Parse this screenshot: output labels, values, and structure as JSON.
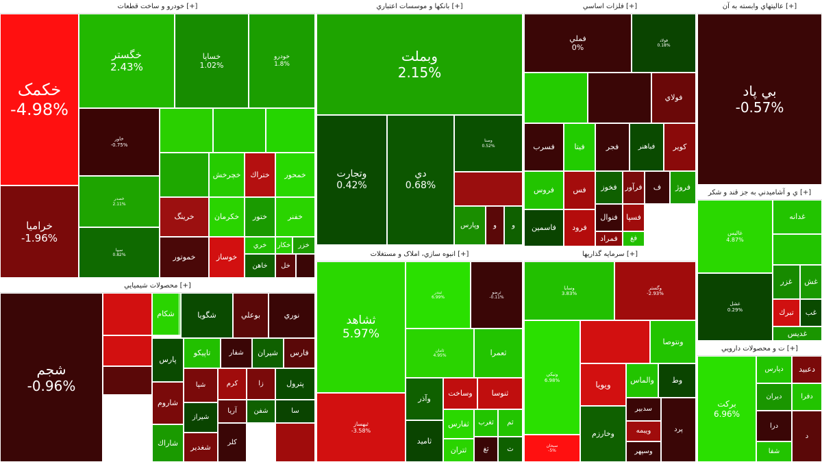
{
  "colors": {
    "strong_red": "#ff0000",
    "red": "#c40000",
    "dark_red": "#7a0000",
    "very_dark_red": "#3a0000",
    "bright_green": "#22ee00",
    "green": "#1aa800",
    "mid_green": "#148600",
    "dark_green": "#0a4d00"
  },
  "sections": [
    {
      "id": "auto",
      "title": "خودرو و ساخت قطعات [+]",
      "tiles": [
        {
          "s": "خکمک",
          "v": "-4.98%",
          "c": "#ff1010",
          "fs": 24
        },
        {
          "s": "خراميا",
          "v": "-1.96%",
          "c": "#7a0a0a",
          "fs": 15
        },
        {
          "s": "خگستر",
          "v": "2.43%",
          "c": "#22b800",
          "fs": 15
        },
        {
          "s": "خساپا",
          "v": "1.02%",
          "c": "#178c00",
          "fs": 11
        },
        {
          "s": "خودرو",
          "v": "1.8%",
          "c": "#1b9e00",
          "fs": 9
        },
        {
          "s": "خاور",
          "v": "-0.75%",
          "c": "#3a0505",
          "fs": 7
        },
        {
          "s": "",
          "v": "",
          "c": "#2ad000",
          "fs": 6
        },
        {
          "s": "",
          "v": "",
          "c": "#22c400",
          "fs": 6
        },
        {
          "s": "",
          "v": "",
          "c": "#25d500",
          "fs": 6
        },
        {
          "s": "خصدر",
          "v": "2.11%",
          "c": "#1ea400",
          "fs": 6
        },
        {
          "s": "",
          "v": "",
          "c": "#1ea800",
          "fs": 6
        },
        {
          "s": "خچرخش",
          "v": "",
          "c": "#26cc00",
          "fs": 11
        },
        {
          "s": "ختراك",
          "v": "",
          "c": "#b41010",
          "fs": 11
        },
        {
          "s": "خمحور",
          "v": "",
          "c": "#28d800",
          "fs": 11
        },
        {
          "s": "سيپا",
          "v": "0.82%",
          "c": "#0f6a00",
          "fs": 6
        },
        {
          "s": "خرينگ",
          "v": "",
          "c": "#9c1010",
          "fs": 11
        },
        {
          "s": "خكرمان",
          "v": "",
          "c": "#2ad400",
          "fs": 11
        },
        {
          "s": "ختور",
          "v": "",
          "c": "#1a9a00",
          "fs": 11
        },
        {
          "s": "خفنر",
          "v": "",
          "c": "#2ad400",
          "fs": 11
        },
        {
          "s": "خموتور",
          "v": "",
          "c": "#4a0808",
          "fs": 11
        },
        {
          "s": "خوساز",
          "v": "",
          "c": "#d21010",
          "fs": 11
        },
        {
          "s": "خري",
          "v": "",
          "c": "#22c000",
          "fs": 10
        },
        {
          "s": "خكار",
          "v": "",
          "c": "#28d000",
          "fs": 10
        },
        {
          "s": "خزر",
          "v": "",
          "c": "#1e9e00",
          "fs": 10
        },
        {
          "s": "خاهن",
          "v": "",
          "c": "#0f6000",
          "fs": 10
        },
        {
          "s": "خل",
          "v": "",
          "c": "#5a0808",
          "fs": 10
        },
        {
          "s": "",
          "v": "",
          "c": "#3a0606",
          "fs": 8
        }
      ]
    },
    {
      "id": "banks",
      "title": "بانکها و موسسات اعتباري [+]",
      "tiles": [
        {
          "s": "وبملت",
          "v": "2.15%",
          "c": "#1ea400",
          "fs": 20
        },
        {
          "s": "وتجارت",
          "v": "0.42%",
          "c": "#0a4a00",
          "fs": 14
        },
        {
          "s": "دي",
          "v": "0.68%",
          "c": "#0c5600",
          "fs": 14
        },
        {
          "s": "وصنا",
          "v": "0.52%",
          "c": "#0a5000",
          "fs": 6
        },
        {
          "s": "",
          "v": "",
          "c": "#9a0e0e",
          "fs": 6
        },
        {
          "s": "وپارس",
          "v": "",
          "c": "#1a8e00",
          "fs": 10
        },
        {
          "s": "و",
          "v": "",
          "c": "#5a0808",
          "fs": 10
        },
        {
          "s": "و",
          "v": "",
          "c": "#0f6000",
          "fs": 10
        }
      ]
    },
    {
      "id": "metals",
      "title": "فلزات اساسي [+]",
      "tiles": [
        {
          "s": "فملي",
          "v": "0%",
          "c": "#3a0606",
          "fs": 11
        },
        {
          "s": "فولاد",
          "v": "0.18%",
          "c": "#0a4400",
          "fs": 6
        },
        {
          "s": "",
          "v": "",
          "c": "#24cc00",
          "fs": 6
        },
        {
          "s": "",
          "v": "",
          "c": "#3a0606",
          "fs": 6
        },
        {
          "s": "فولاي",
          "v": "",
          "c": "#6a0808",
          "fs": 11
        },
        {
          "s": "فسرب",
          "v": "",
          "c": "#3a0606",
          "fs": 11
        },
        {
          "s": "فيتا",
          "v": "",
          "c": "#22cc00",
          "fs": 11
        },
        {
          "s": "فجر",
          "v": "",
          "c": "#3a0606",
          "fs": 11
        },
        {
          "s": "فباهنر",
          "v": "",
          "c": "#0a4a00",
          "fs": 10
        },
        {
          "s": "كوير",
          "v": "",
          "c": "#8a0a0a",
          "fs": 11
        },
        {
          "s": "فخوز",
          "v": "",
          "c": "#0f6000",
          "fs": 11
        },
        {
          "s": "فرآور",
          "v": "",
          "c": "#7a0a0a",
          "fs": 11
        },
        {
          "s": "ف",
          "v": "",
          "c": "#3a0606",
          "fs": 11
        },
        {
          "s": "فروژ",
          "v": "",
          "c": "#1a9a00",
          "fs": 11
        },
        {
          "s": "فروس",
          "v": "",
          "c": "#22c400",
          "fs": 11
        },
        {
          "s": "فس",
          "v": "",
          "c": "#a40c0c",
          "fs": 11
        },
        {
          "s": "فنوال",
          "v": "",
          "c": "#3a0606",
          "fs": 11
        },
        {
          "s": "فسپا",
          "v": "",
          "c": "#a00c0c",
          "fs": 11
        },
        {
          "s": "فاسمين",
          "v": "",
          "c": "#0a4400",
          "fs": 11
        },
        {
          "s": "فرود",
          "v": "",
          "c": "#b40c0c",
          "fs": 11
        },
        {
          "s": "فمراد",
          "v": "",
          "c": "#8a0a0a",
          "fs": 11
        },
        {
          "s": "فغ",
          "v": "",
          "c": "#22c000",
          "fs": 10
        }
      ]
    },
    {
      "id": "topright",
      "title": "عاليتهاي وابسته به آن [+]",
      "tiles": [
        {
          "s": "بي پاد",
          "v": "-0.57%",
          "c": "#3a0606",
          "fs": 20
        }
      ]
    },
    {
      "id": "food",
      "title": "ي و آشاميدني به جز قند و شكر [+]",
      "tiles": [
        {
          "s": "غاليس",
          "v": "4.87%",
          "c": "#2ad800",
          "fs": 8
        },
        {
          "s": "غدانه",
          "v": "",
          "c": "#22c400",
          "fs": 11
        },
        {
          "s": "",
          "v": "",
          "c": "#22c400",
          "fs": 10
        },
        {
          "s": "غزر",
          "v": "",
          "c": "#178a00",
          "fs": 11
        },
        {
          "s": "غشل",
          "v": "0.29%",
          "c": "#0a4400",
          "fs": 7
        },
        {
          "s": "غش",
          "v": "",
          "c": "#1a9a00",
          "fs": 11
        },
        {
          "s": "تبرك",
          "v": "",
          "c": "#d01010",
          "fs": 11
        },
        {
          "s": "غب",
          "v": "",
          "c": "#0a4a00",
          "fs": 11
        },
        {
          "s": "غديس",
          "v": "",
          "c": "#1a9600",
          "fs": 11
        }
      ]
    },
    {
      "id": "pharma",
      "title": "ت و محصولات دارويي [+]",
      "tiles": [
        {
          "s": "بركت",
          "v": "6.96%",
          "c": "#2ae000",
          "fs": 12
        },
        {
          "s": "دپارس",
          "v": "",
          "c": "#22c400",
          "fs": 10
        },
        {
          "s": "دعبيد",
          "v": "",
          "c": "#7a0a0a",
          "fs": 11
        },
        {
          "s": "ديران",
          "v": "",
          "c": "#1a9600",
          "fs": 10
        },
        {
          "s": "دفرا",
          "v": "",
          "c": "#22c400",
          "fs": 10
        },
        {
          "s": "درا",
          "v": "",
          "c": "#3a0606",
          "fs": 10
        },
        {
          "s": "شفا",
          "v": "",
          "c": "#22c400",
          "fs": 10
        },
        {
          "s": "د",
          "v": "",
          "c": "#5a0808",
          "fs": 10
        }
      ]
    },
    {
      "id": "chem",
      "title": "محصولات شيميايي [+]",
      "tiles": [
        {
          "s": "شجم",
          "v": "-0.96%",
          "c": "#3a0606",
          "fs": 20
        },
        {
          "s": "",
          "v": "",
          "c": "#d21010",
          "fs": 6
        },
        {
          "s": "",
          "v": "",
          "c": "#22cc00",
          "fs": 6
        },
        {
          "s": "",
          "v": "",
          "c": "#d21010",
          "fs": 6
        },
        {
          "s": "",
          "v": "",
          "c": "#5a0808",
          "fs": 6
        },
        {
          "s": "شكام",
          "v": "",
          "c": "#2ad400",
          "fs": 11
        },
        {
          "s": "شگويا",
          "v": "",
          "c": "#0a4a00",
          "fs": 11
        },
        {
          "s": "بوعلي",
          "v": "",
          "c": "#5a0808",
          "fs": 11
        },
        {
          "s": "نوري",
          "v": "",
          "c": "#3a0606",
          "fs": 11
        },
        {
          "s": "پارس",
          "v": "",
          "c": "#0a4a00",
          "fs": 11
        },
        {
          "s": "تاپيكو",
          "v": "",
          "c": "#22c000",
          "fs": 11
        },
        {
          "s": "شفار",
          "v": "",
          "c": "#3a0606",
          "fs": 10
        },
        {
          "s": "شيران",
          "v": "",
          "c": "#0f6000",
          "fs": 11
        },
        {
          "s": "فارس",
          "v": "",
          "c": "#5a0808",
          "fs": 11
        },
        {
          "s": "شپا",
          "v": "",
          "c": "#7a0a0a",
          "fs": 10
        },
        {
          "s": "كرم",
          "v": "",
          "c": "#a00c0c",
          "fs": 10
        },
        {
          "s": "زا",
          "v": "",
          "c": "#7a0a0a",
          "fs": 10
        },
        {
          "s": "پترول",
          "v": "",
          "c": "#0a4a00",
          "fs": 11
        },
        {
          "s": "شاروم",
          "v": "",
          "c": "#7a0a0a",
          "fs": 11
        },
        {
          "s": "شيراز",
          "v": "",
          "c": "#0a4400",
          "fs": 10
        },
        {
          "s": "آريا",
          "v": "",
          "c": "#5a0808",
          "fs": 10
        },
        {
          "s": "شفن",
          "v": "",
          "c": "#0f6000",
          "fs": 10
        },
        {
          "s": "سا",
          "v": "",
          "c": "#0a4400",
          "fs": 10
        },
        {
          "s": "شاراك",
          "v": "",
          "c": "#1a9a00",
          "fs": 11
        },
        {
          "s": "شغدير",
          "v": "",
          "c": "#7a0a0a",
          "fs": 11
        },
        {
          "s": "كلر",
          "v": "",
          "c": "#3a0606",
          "fs": 10
        },
        {
          "s": "",
          "v": "",
          "c": "#a00c0c",
          "fs": 8
        }
      ]
    },
    {
      "id": "construction",
      "title": "انبوه سازي، املاک و مستغلات [+]",
      "tiles": [
        {
          "s": "ثشاهد",
          "v": "5.97%",
          "c": "#2ad800",
          "fs": 17
        },
        {
          "s": "ثبهساز",
          "v": "-3.58%",
          "c": "#d21010",
          "fs": 8
        },
        {
          "s": "ثبندر",
          "v": "6.99%",
          "c": "#2ae000",
          "fs": 6
        },
        {
          "s": "ثرضو",
          "v": "-0.11%",
          "c": "#3a0606",
          "fs": 6
        },
        {
          "s": "ثامان",
          "v": "4.95%",
          "c": "#2ad400",
          "fs": 6
        },
        {
          "s": "ثعمرا",
          "v": "",
          "c": "#22c400",
          "fs": 11
        },
        {
          "s": "وآذر",
          "v": "",
          "c": "#0f6000",
          "fs": 11
        },
        {
          "s": "وساخت",
          "v": "",
          "c": "#c00e0e",
          "fs": 11
        },
        {
          "s": "ثنوسا",
          "v": "",
          "c": "#c00e0e",
          "fs": 11
        },
        {
          "s": "ثفارس",
          "v": "",
          "c": "#2ad800",
          "fs": 11
        },
        {
          "s": "ثغرب",
          "v": "",
          "c": "#22c400",
          "fs": 10
        },
        {
          "s": "ثم",
          "v": "",
          "c": "#22c400",
          "fs": 10
        },
        {
          "s": "ثاميد",
          "v": "",
          "c": "#0a4400",
          "fs": 11
        },
        {
          "s": "ثتران",
          "v": "",
          "c": "#2ad400",
          "fs": 11
        },
        {
          "s": "ثغ",
          "v": "",
          "c": "#3a0606",
          "fs": 10
        },
        {
          "s": "ث",
          "v": "",
          "c": "#0f6000",
          "fs": 10
        }
      ]
    },
    {
      "id": "invest",
      "title": "سرمايه گذاريها [+]",
      "tiles": [
        {
          "s": "وسايا",
          "v": "3.83%",
          "c": "#22c000",
          "fs": 7
        },
        {
          "s": "وگستر",
          "v": "-2.93%",
          "c": "#a00c0c",
          "fs": 7
        },
        {
          "s": "ونيكي",
          "v": "6.98%",
          "c": "#2ae000",
          "fs": 7
        },
        {
          "s": "",
          "v": "",
          "c": "#d21010",
          "fs": 6
        },
        {
          "s": "ونتوصا",
          "v": "",
          "c": "#22c400",
          "fs": 11
        },
        {
          "s": "سبحان",
          "v": "-5%",
          "c": "#ff1010",
          "fs": 6
        },
        {
          "s": "ويويا",
          "v": "",
          "c": "#d21010",
          "fs": 12
        },
        {
          "s": "والماس",
          "v": "",
          "c": "#22c400",
          "fs": 11
        },
        {
          "s": "وط",
          "v": "",
          "c": "#0a4400",
          "fs": 11
        },
        {
          "s": "وخارزم",
          "v": "",
          "c": "#0f6000",
          "fs": 11
        },
        {
          "s": "سدبير",
          "v": "",
          "c": "#3a0606",
          "fs": 10
        },
        {
          "s": "ويبمه",
          "v": "",
          "c": "#a00c0c",
          "fs": 10
        },
        {
          "s": "وسپهر",
          "v": "",
          "c": "#3a0606",
          "fs": 10
        },
        {
          "s": "پرد",
          "v": "",
          "c": "#3a0606",
          "fs": 10
        }
      ]
    }
  ]
}
